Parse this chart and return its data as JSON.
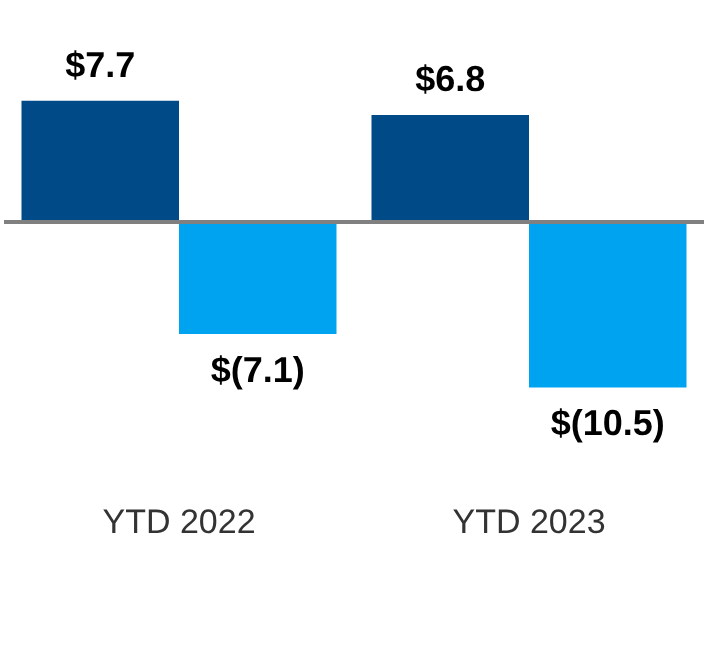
{
  "chart_data": {
    "type": "bar",
    "categories": [
      "YTD 2022",
      "YTD 2023"
    ],
    "series": [
      {
        "color": "#004a87",
        "values": [
          7.7,
          6.8
        ],
        "value_labels": [
          "$7.7",
          "$6.8"
        ]
      },
      {
        "color": "#00a3f0",
        "values": [
          -7.1,
          -10.5
        ],
        "value_labels": [
          "$(7.1)",
          "$(10.5)"
        ]
      }
    ],
    "tick_labels": "x",
    "grid": false,
    "legend": false
  }
}
